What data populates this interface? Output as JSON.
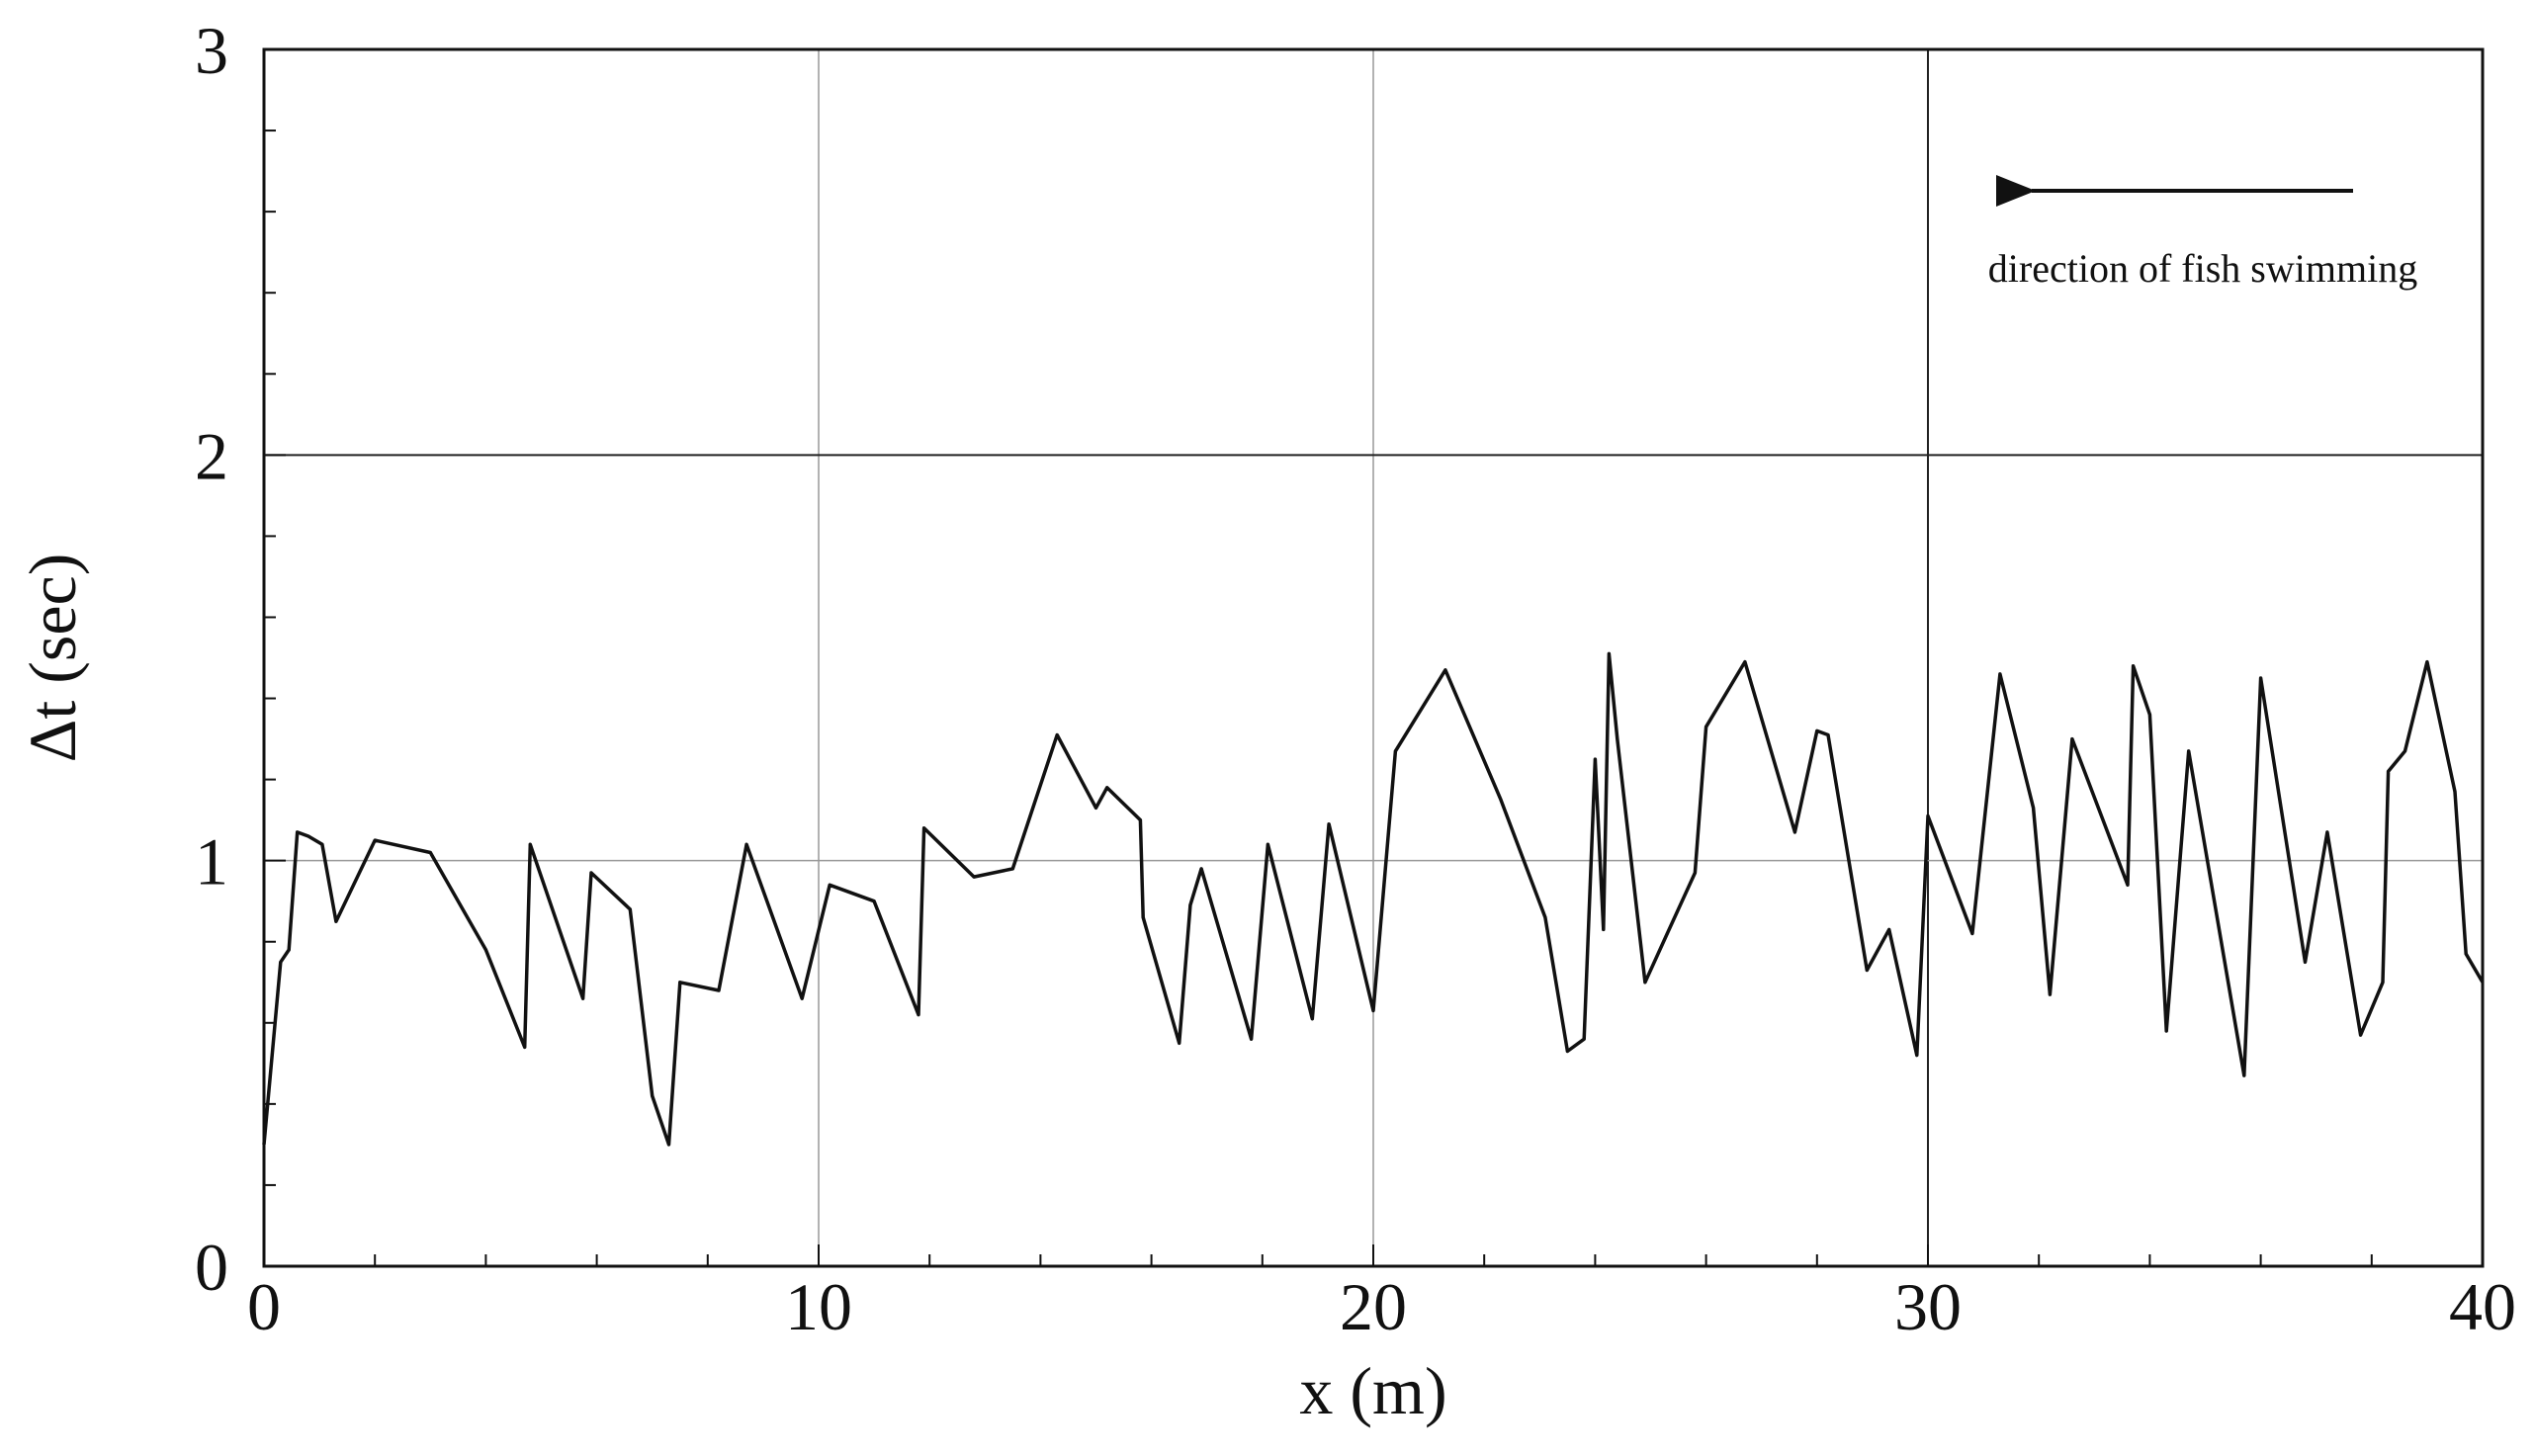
{
  "chart_data": {
    "type": "line",
    "xlabel": "x (m)",
    "ylabel": "Δt (sec)",
    "xlim": [
      0,
      40
    ],
    "ylim": [
      0,
      3
    ],
    "xticks": [
      0,
      10,
      20,
      30,
      40
    ],
    "yticks": [
      0,
      1,
      2,
      3
    ],
    "grid": true,
    "annotation": {
      "text": "direction of fish swimming",
      "arrow": "left"
    },
    "series": [
      {
        "color": "#111111",
        "x": [
          0,
          0.3,
          0.45,
          0.6,
          0.8,
          1.05,
          1.3,
          2.0,
          3.0,
          4.0,
          4.7,
          4.8,
          5.75,
          5.9,
          6.6,
          7.0,
          7.3,
          7.5,
          8.2,
          8.7,
          9.7,
          10.2,
          11.0,
          11.8,
          11.9,
          12.8,
          13.5,
          14.3,
          15.0,
          15.2,
          15.8,
          15.85,
          16.5,
          16.7,
          16.9,
          17.8,
          18.1,
          18.9,
          19.2,
          20.0,
          20.4,
          21.3,
          22.3,
          23.1,
          23.5,
          23.8,
          24.0,
          24.15,
          24.25,
          24.4,
          24.9,
          25.3,
          25.8,
          26.0,
          26.7,
          27.6,
          28.0,
          28.2,
          28.9,
          29.3,
          29.8,
          30.0,
          30.8,
          31.3,
          31.9,
          32.2,
          32.6,
          33.6,
          33.7,
          34.0,
          34.3,
          34.7,
          35.7,
          36.0,
          36.8,
          37.2,
          37.8,
          38.2,
          38.3,
          38.6,
          39.0,
          39.5,
          39.7,
          40.0
        ],
        "y": [
          0.3,
          0.75,
          0.78,
          1.07,
          1.06,
          1.04,
          0.85,
          1.05,
          1.02,
          0.78,
          0.54,
          1.04,
          0.66,
          0.97,
          0.88,
          0.42,
          0.3,
          0.7,
          0.68,
          1.04,
          0.66,
          0.94,
          0.9,
          0.62,
          1.08,
          0.96,
          0.98,
          1.31,
          1.13,
          1.18,
          1.1,
          0.86,
          0.55,
          0.89,
          0.98,
          0.56,
          1.04,
          0.61,
          1.09,
          0.63,
          1.27,
          1.47,
          1.15,
          0.86,
          0.53,
          0.56,
          1.25,
          0.83,
          1.51,
          1.3,
          0.7,
          0.82,
          0.97,
          1.33,
          1.49,
          1.07,
          1.32,
          1.31,
          0.73,
          0.83,
          0.52,
          1.11,
          0.82,
          1.46,
          1.13,
          0.67,
          1.3,
          0.94,
          1.48,
          1.36,
          0.58,
          1.27,
          0.47,
          1.45,
          0.75,
          1.07,
          0.57,
          0.7,
          1.22,
          1.27,
          1.49,
          1.17,
          0.77,
          0.7
        ]
      }
    ]
  }
}
